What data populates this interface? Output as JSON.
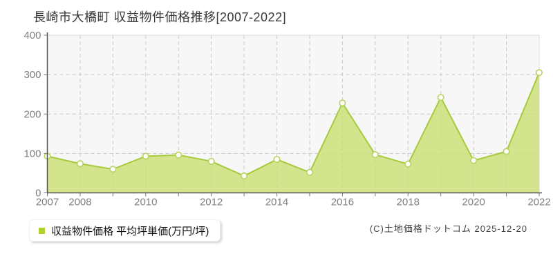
{
  "page": {
    "title": "長崎市大橋町 収益物件価格推移[2007-2022]",
    "copyright": "(C)土地価格ドットコム 2025-12-20"
  },
  "legend": {
    "label": "収益物件価格 平均坪単価(万円/坪)",
    "marker_color": "#b0d22c"
  },
  "chart_data": {
    "type": "area",
    "title": "長崎市大橋町 収益物件価格推移[2007-2022]",
    "series_name": "収益物件価格 平均坪単価(万円/坪)",
    "x": [
      2007,
      2008,
      2009,
      2010,
      2011,
      2012,
      2013,
      2014,
      2015,
      2016,
      2017,
      2018,
      2019,
      2020,
      2021,
      2022
    ],
    "values": [
      93,
      74,
      60,
      93,
      96,
      80,
      43,
      85,
      52,
      228,
      97,
      73,
      242,
      82,
      105,
      305
    ],
    "ylabel": "万円/坪",
    "ylim": [
      0,
      400
    ],
    "yticks": [
      0,
      100,
      200,
      300,
      400
    ],
    "xtick_labels": [
      "2007",
      "2008",
      "",
      "2010",
      "",
      "2012",
      "",
      "2014",
      "",
      "2016",
      "",
      "2018",
      "",
      "2020",
      "",
      "2022"
    ],
    "grid": true,
    "grid_style": "dashed",
    "legend_position": "bottom-left",
    "colors": {
      "line": "#a6ca3c",
      "fill": "#cbdf70",
      "fill_opacity": 0.78,
      "marker_fill": "#ffffff",
      "marker_stroke": "#b7d45c",
      "grid": "#c8c8c8",
      "border": "#dddddd",
      "axis": "#555555",
      "tick": "#777777",
      "tick_label": "#808080",
      "plot_bg": "#f7f7f7"
    }
  }
}
